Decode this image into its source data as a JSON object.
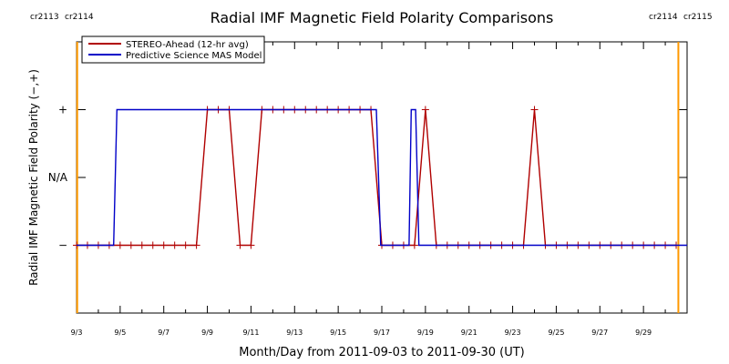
{
  "chart_data": {
    "type": "line",
    "title": "Radial IMF Magnetic Field Polarity Comparisons",
    "xlabel": "Month/Day from 2011-09-03 to 2011-09-30 (UT)",
    "ylabel": "Radial IMF Magnetic Field Polarity (−,+)",
    "x_range": [
      0,
      28
    ],
    "y_range": [
      -2,
      2
    ],
    "x_ticks": [
      {
        "x": 0,
        "label": "9/3"
      },
      {
        "x": 2,
        "label": "9/5"
      },
      {
        "x": 4,
        "label": "9/7"
      },
      {
        "x": 6,
        "label": "9/9"
      },
      {
        "x": 8,
        "label": "9/11"
      },
      {
        "x": 10,
        "label": "9/13"
      },
      {
        "x": 12,
        "label": "9/15"
      },
      {
        "x": 14,
        "label": "9/17"
      },
      {
        "x": 16,
        "label": "9/19"
      },
      {
        "x": 18,
        "label": "9/21"
      },
      {
        "x": 20,
        "label": "9/23"
      },
      {
        "x": 22,
        "label": "9/25"
      },
      {
        "x": 24,
        "label": "9/27"
      },
      {
        "x": 26,
        "label": "9/29"
      }
    ],
    "y_ticks": [
      {
        "y": 1,
        "label": "+"
      },
      {
        "y": 0,
        "label": "N/A"
      },
      {
        "y": -1,
        "label": "−"
      }
    ],
    "carrington_markers": [
      {
        "x": 0.03,
        "left": "cr2113",
        "right": "cr2114",
        "side": "left"
      },
      {
        "x": 27.6,
        "left": "cr2114",
        "right": "cr2115",
        "side": "right"
      }
    ],
    "series": [
      {
        "name": "STEREO-Ahead (12-hr avg)",
        "color": "#b00000",
        "markers": "plus",
        "points": [
          [
            0,
            -1
          ],
          [
            0.5,
            -1
          ],
          [
            1,
            -1
          ],
          [
            1.5,
            -1
          ],
          [
            2,
            -1
          ],
          [
            2.5,
            -1
          ],
          [
            3,
            -1
          ],
          [
            3.5,
            -1
          ],
          [
            4,
            -1
          ],
          [
            4.5,
            -1
          ],
          [
            5,
            -1
          ],
          [
            5.5,
            -1
          ],
          [
            6,
            1
          ],
          [
            6.5,
            1
          ],
          [
            7,
            1
          ],
          [
            7.5,
            -1
          ],
          [
            8,
            -1
          ],
          [
            8.5,
            1
          ],
          [
            9,
            1
          ],
          [
            9.5,
            1
          ],
          [
            10,
            1
          ],
          [
            10.5,
            1
          ],
          [
            11,
            1
          ],
          [
            11.5,
            1
          ],
          [
            12,
            1
          ],
          [
            12.5,
            1
          ],
          [
            13,
            1
          ],
          [
            13.5,
            1
          ],
          [
            14,
            -1
          ],
          [
            14.5,
            -1
          ],
          [
            15,
            -1
          ],
          [
            15.5,
            -1
          ],
          [
            16,
            1
          ],
          [
            16.5,
            -1
          ],
          [
            17,
            -1
          ],
          [
            17.5,
            -1
          ],
          [
            18,
            -1
          ],
          [
            18.5,
            -1
          ],
          [
            19,
            -1
          ],
          [
            19.5,
            -1
          ],
          [
            20,
            -1
          ],
          [
            20.5,
            -1
          ],
          [
            21,
            1
          ],
          [
            21.5,
            -1
          ],
          [
            22,
            -1
          ],
          [
            22.5,
            -1
          ],
          [
            23,
            -1
          ],
          [
            23.5,
            -1
          ],
          [
            24,
            -1
          ],
          [
            24.5,
            -1
          ],
          [
            25,
            -1
          ],
          [
            25.5,
            -1
          ],
          [
            26,
            -1
          ],
          [
            26.5,
            -1
          ],
          [
            27,
            -1
          ],
          [
            27.5,
            -1
          ]
        ]
      },
      {
        "name": "Predictive Science MAS Model",
        "color": "#0000c8",
        "markers": "none",
        "points": [
          [
            0,
            -1
          ],
          [
            1.7,
            -1
          ],
          [
            1.85,
            1
          ],
          [
            13.75,
            1
          ],
          [
            13.95,
            -1
          ],
          [
            15.25,
            -1
          ],
          [
            15.35,
            1
          ],
          [
            15.55,
            1
          ],
          [
            15.7,
            -1
          ],
          [
            28,
            -1
          ]
        ]
      }
    ],
    "legend_position": "top-left",
    "orange": "#ff9900"
  }
}
